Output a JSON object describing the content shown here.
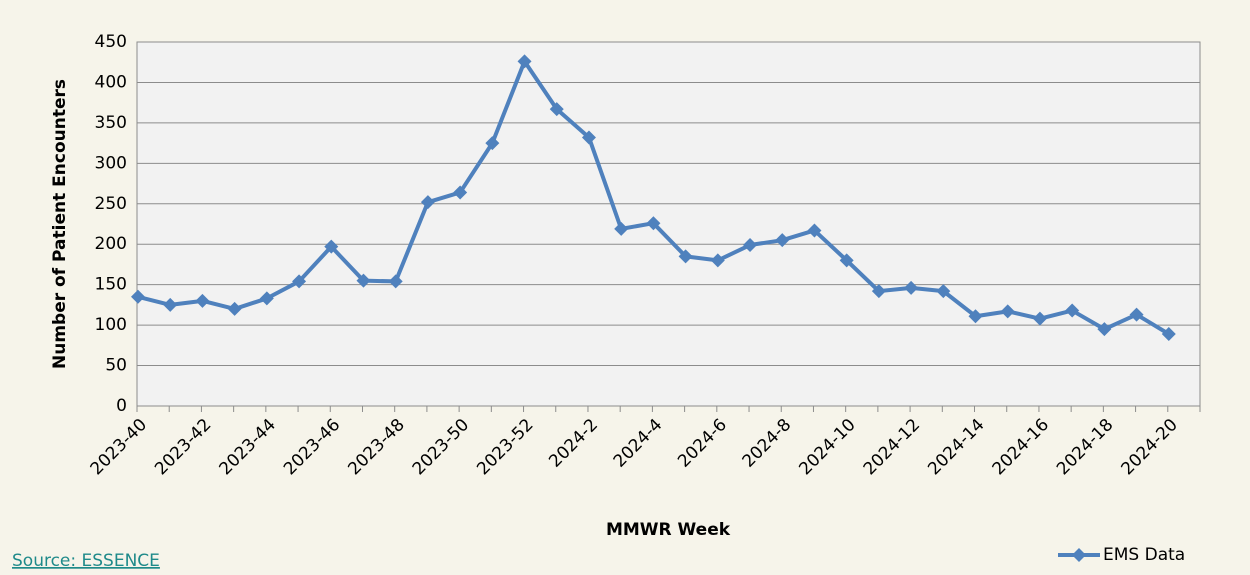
{
  "chart_data": {
    "type": "line",
    "x_label": "MMWR Week",
    "y_label": "Number of Patient Encounters",
    "source": "Source: ESSENCE",
    "categories": [
      "2023-40",
      null,
      "2023-42",
      null,
      "2023-44",
      null,
      "2023-46",
      null,
      "2023-48",
      null,
      "2023-50",
      null,
      "2023-52",
      null,
      "2024-2",
      null,
      "2024-4",
      null,
      "2024-6",
      null,
      "2024-8",
      null,
      "2024-10",
      null,
      "2024-12",
      null,
      "2024-14",
      null,
      "2024-16",
      null,
      "2024-18",
      null,
      "2024-20"
    ],
    "series": [
      {
        "name": "EMS Data",
        "color": "#4f81bd",
        "values": [
          135,
          125,
          130,
          120,
          133,
          154,
          197,
          155,
          154,
          252,
          264,
          325,
          426,
          367,
          332,
          219,
          226,
          185,
          180,
          199,
          205,
          217,
          180,
          142,
          146,
          142,
          111,
          117,
          108,
          118,
          95,
          113,
          89
        ]
      }
    ],
    "ylim": [
      0,
      450
    ],
    "yticks": [
      0,
      50,
      100,
      150,
      200,
      250,
      300,
      350,
      400,
      450
    ],
    "grid": true,
    "legend": "bottom-right"
  }
}
